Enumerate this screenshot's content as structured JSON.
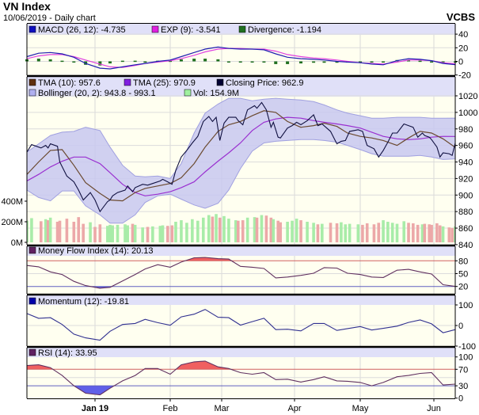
{
  "header": {
    "title": "VN Index",
    "subtitle": "10/06/2019 - Daily chart",
    "brand": "VCBS"
  },
  "colors": {
    "plot_bg": "#fffff0",
    "legend_bg": "#e0e0f8",
    "macd": "#2020b0",
    "exp": "#e040e0",
    "divergence": "#207020",
    "tma10": "#6b4a30",
    "tma25": "#9a30d0",
    "close": "#101040",
    "bollinger_fill": "#c8c8f0",
    "bollinger_edge": "#a0a0e0",
    "vol_up": "#a8eca8",
    "vol_down": "#eca8a8",
    "osc_line": "#603060",
    "momentum": "#303090",
    "overbought": "#f06060",
    "oversold": "#6060e8",
    "ob_line": "#d06060",
    "os_line": "#6060c0"
  },
  "legends": {
    "macd": {
      "label": "MACD (26, 12): -4.735",
      "swatch": "#1010c0"
    },
    "exp": {
      "label": "EXP (9): -3.541",
      "swatch": "#e020e0"
    },
    "divergence": {
      "label": "Divergence: -1.194",
      "swatch": "#207020"
    },
    "tma10": {
      "label": "TMA (10): 957.6",
      "swatch": "#603010"
    },
    "tma25": {
      "label": "TMA (25): 970.9",
      "swatch": "#8020e0"
    },
    "close": {
      "label": "Closing Price: 962.9",
      "swatch": "#000033"
    },
    "bollinger": {
      "label": "Bollinger (20, 2): 943.8 - 993.1",
      "swatch": "#b0b0f0"
    },
    "vol": {
      "label": "Vol: 154.9M",
      "swatch": "#a0f0a0"
    },
    "mfi": {
      "label": "Money Flow Index (14): 20.13",
      "swatch": "#602060"
    },
    "momentum": {
      "label": "Momentum (12): -19.81",
      "swatch": "#0000aa"
    },
    "rsi": {
      "label": "RSI (14): 33.95",
      "swatch": "#602060"
    }
  },
  "chart_data": {
    "type": "line",
    "x_ticks": [
      {
        "date": "2019-01-02",
        "label": "Jan 19",
        "bold": true
      },
      {
        "date": "2019-02-01",
        "label": "Feb"
      },
      {
        "date": "2019-03-01",
        "label": "Mar"
      },
      {
        "date": "2019-04-01",
        "label": "Apr"
      },
      {
        "date": "2019-05-02",
        "label": "May"
      },
      {
        "date": "2019-06-03",
        "label": "Jun"
      }
    ],
    "x_range": [
      "2018-12-04",
      "2019-06-10"
    ],
    "grid": true,
    "axes": {
      "macd": {
        "ticks": [
          "40",
          "20",
          "0",
          "-20"
        ],
        "values": [
          40,
          20,
          0,
          -20
        ],
        "ylim": [
          -20,
          40
        ]
      },
      "price": {
        "ticks": [
          "1020",
          "1000",
          "980",
          "960",
          "940",
          "920",
          "900",
          "880",
          "860",
          "840"
        ],
        "values": [
          1020,
          1000,
          980,
          960,
          940,
          920,
          900,
          880,
          860,
          840
        ],
        "ylim": [
          840,
          1020
        ]
      },
      "volume": {
        "ticks": [
          "400M",
          "200M",
          "0M"
        ],
        "values": [
          400,
          200,
          0
        ],
        "unit": "M"
      },
      "mfi": {
        "ticks": [
          "80",
          "50",
          "20"
        ],
        "values": [
          80,
          50,
          20
        ],
        "ylim": [
          0,
          100
        ]
      },
      "momentum": {
        "ticks": [
          "100",
          "0",
          "-100"
        ],
        "values": [
          100,
          0,
          -100
        ]
      },
      "rsi": {
        "ticks": [
          "100",
          "70",
          "30",
          "0"
        ],
        "values": [
          100,
          70,
          30,
          0
        ],
        "ylim": [
          0,
          100
        ]
      }
    },
    "close_volume": [
      [
        "2018-12-04",
        952,
        210
      ],
      [
        "2018-12-06",
        961,
        235
      ],
      [
        "2018-12-10",
        957,
        205
      ],
      [
        "2018-12-12",
        960,
        225
      ],
      [
        "2018-12-13",
        957,
        215
      ],
      [
        "2018-12-14",
        962,
        240
      ],
      [
        "2018-12-17",
        959,
        200
      ],
      [
        "2018-12-18",
        940,
        210
      ],
      [
        "2018-12-21",
        923,
        230
      ],
      [
        "2018-12-24",
        916,
        200
      ],
      [
        "2018-12-26",
        906,
        245
      ],
      [
        "2018-12-28",
        894,
        180
      ],
      [
        "2018-12-31",
        903,
        195
      ],
      [
        "2019-01-02",
        894,
        150
      ],
      [
        "2019-01-04",
        880,
        175
      ],
      [
        "2019-01-07",
        892,
        160
      ],
      [
        "2019-01-08",
        894,
        170
      ],
      [
        "2019-01-09",
        899,
        165
      ],
      [
        "2019-01-11",
        903,
        170
      ],
      [
        "2019-01-14",
        906,
        175
      ],
      [
        "2019-01-15",
        911,
        165
      ],
      [
        "2019-01-17",
        904,
        180
      ],
      [
        "2019-01-18",
        909,
        170
      ],
      [
        "2019-01-21",
        913,
        145
      ],
      [
        "2019-01-23",
        912,
        150
      ],
      [
        "2019-01-25",
        914,
        155
      ],
      [
        "2019-01-28",
        917,
        160
      ],
      [
        "2019-01-29",
        919,
        165
      ],
      [
        "2019-01-31",
        916,
        160
      ],
      [
        "2019-02-02",
        913,
        165
      ],
      [
        "2019-02-04",
        930,
        200
      ],
      [
        "2019-02-07",
        946,
        215
      ],
      [
        "2019-02-10",
        954,
        190
      ],
      [
        "2019-02-13",
        963,
        225
      ],
      [
        "2019-02-16",
        971,
        210
      ],
      [
        "2019-02-19",
        989,
        240
      ],
      [
        "2019-02-22",
        995,
        265
      ],
      [
        "2019-02-24",
        989,
        250
      ],
      [
        "2019-02-26",
        994,
        275
      ],
      [
        "2019-02-28",
        966,
        240
      ],
      [
        "2019-03-02",
        987,
        255
      ],
      [
        "2019-03-04",
        994,
        230
      ],
      [
        "2019-03-07",
        994,
        215
      ],
      [
        "2019-03-08",
        990,
        210
      ],
      [
        "2019-03-10",
        985,
        215
      ],
      [
        "2019-03-12",
        1003,
        240
      ],
      [
        "2019-03-15",
        1008,
        245
      ],
      [
        "2019-03-16",
        1005,
        240
      ],
      [
        "2019-03-18",
        1012,
        265
      ],
      [
        "2019-03-20",
        1003,
        260
      ],
      [
        "2019-03-22",
        982,
        240
      ],
      [
        "2019-03-23",
        988,
        225
      ],
      [
        "2019-03-25",
        970,
        210
      ],
      [
        "2019-03-26",
        969,
        195
      ],
      [
        "2019-03-29",
        981,
        200
      ],
      [
        "2019-03-31",
        984,
        210
      ],
      [
        "2019-04-02",
        988,
        230
      ],
      [
        "2019-04-04",
        985,
        215
      ],
      [
        "2019-04-07",
        990,
        200
      ],
      [
        "2019-04-10",
        997,
        190
      ],
      [
        "2019-04-12",
        984,
        175
      ],
      [
        "2019-04-14",
        986,
        180
      ],
      [
        "2019-04-18",
        977,
        190
      ],
      [
        "2019-04-21",
        962,
        185
      ],
      [
        "2019-04-23",
        965,
        195
      ],
      [
        "2019-04-25",
        966,
        175
      ],
      [
        "2019-04-27",
        977,
        180
      ],
      [
        "2019-05-01",
        979,
        175
      ],
      [
        "2019-05-03",
        977,
        170
      ],
      [
        "2019-05-05",
        960,
        185
      ],
      [
        "2019-05-08",
        956,
        175
      ],
      [
        "2019-05-10",
        946,
        190
      ],
      [
        "2019-05-12",
        954,
        215
      ],
      [
        "2019-05-14",
        964,
        200
      ],
      [
        "2019-05-16",
        975,
        190
      ],
      [
        "2019-05-18",
        975,
        180
      ],
      [
        "2019-05-21",
        986,
        205
      ],
      [
        "2019-05-23",
        984,
        190
      ],
      [
        "2019-05-25",
        982,
        185
      ],
      [
        "2019-05-27",
        970,
        170
      ],
      [
        "2019-05-29",
        975,
        175
      ],
      [
        "2019-05-30",
        972,
        180
      ],
      [
        "2019-06-01",
        970,
        175
      ],
      [
        "2019-06-02",
        967,
        170
      ],
      [
        "2019-06-04",
        958,
        185
      ],
      [
        "2019-06-05",
        946,
        165
      ],
      [
        "2019-06-06",
        951,
        155
      ],
      [
        "2019-06-08",
        950,
        145
      ],
      [
        "2019-06-09",
        948,
        140
      ],
      [
        "2019-06-10",
        962.9,
        154.9
      ]
    ],
    "sample_dates": [
      "2018-12-04",
      "2018-12-09",
      "2018-12-14",
      "2018-12-19",
      "2018-12-24",
      "2018-12-29",
      "2019-01-04",
      "2019-01-08",
      "2019-01-13",
      "2019-01-18",
      "2019-01-22",
      "2019-01-27",
      "2019-02-01",
      "2019-02-07",
      "2019-02-14",
      "2019-02-20",
      "2019-02-27",
      "2019-03-04",
      "2019-03-09",
      "2019-03-14",
      "2019-03-19",
      "2019-03-24",
      "2019-03-29",
      "2019-04-04",
      "2019-04-10",
      "2019-04-15",
      "2019-04-21",
      "2019-04-26",
      "2019-05-02",
      "2019-05-07",
      "2019-05-12",
      "2019-05-18",
      "2019-05-23",
      "2019-05-28",
      "2019-06-02",
      "2019-06-06",
      "2019-06-10"
    ],
    "tma10": [
      925,
      940,
      954,
      955,
      936,
      915,
      902,
      894,
      893,
      903,
      908,
      911,
      914,
      921,
      938,
      958,
      977,
      985,
      989,
      996,
      1002,
      1000,
      989,
      982,
      984,
      987,
      983,
      975,
      971,
      969,
      966,
      960,
      969,
      977,
      975,
      968,
      957.6
    ],
    "tma25": [
      917,
      925,
      934,
      941,
      946,
      946,
      938,
      927,
      913,
      903,
      899,
      901,
      904,
      909,
      916,
      928,
      941,
      951,
      963,
      978,
      988,
      992,
      994,
      993,
      990,
      988,
      986,
      984,
      981,
      976,
      971,
      968,
      967,
      968,
      970,
      971,
      970.9
    ],
    "bollinger_upper": [
      952,
      962,
      972,
      976,
      977,
      982,
      978,
      958,
      936,
      923,
      922,
      923,
      920,
      938,
      975,
      999,
      1010,
      1017,
      1017,
      1014,
      1016,
      1017,
      1016,
      1015,
      1013,
      1009,
      1003,
      999,
      996,
      993,
      993,
      994,
      994,
      994,
      993,
      993,
      993.1
    ],
    "bollinger_lower": [
      906,
      897,
      893,
      905,
      905,
      887,
      876,
      866,
      866,
      876,
      891,
      899,
      901,
      895,
      888,
      884,
      890,
      906,
      932,
      953,
      963,
      965,
      966,
      967,
      967,
      966,
      964,
      960,
      955,
      950,
      947,
      947,
      947,
      948,
      946,
      943,
      943.8
    ],
    "macd": [
      7,
      12,
      13,
      11,
      6,
      -3,
      -10,
      -11,
      -8,
      -5,
      -3,
      0,
      2,
      7,
      13,
      18,
      21,
      19,
      18,
      18,
      17,
      11,
      6,
      4,
      3,
      2,
      0,
      -1,
      -2,
      -4,
      -5,
      1,
      4,
      3,
      1,
      -3,
      -4.735
    ],
    "exp": [
      4,
      8,
      10,
      10,
      7,
      2,
      -4,
      -8,
      -9,
      -6,
      -3,
      -1,
      1,
      4,
      9,
      14,
      18,
      19,
      19,
      18,
      18,
      15,
      10,
      7,
      5,
      4,
      2,
      0,
      -2,
      -3,
      -4,
      -1,
      2,
      2,
      1,
      -2,
      -3.541
    ],
    "divergence": [
      3,
      4,
      3,
      1,
      -1,
      -5,
      -6,
      -3,
      1,
      1,
      0,
      1,
      1,
      3,
      4,
      4,
      3,
      0,
      -1,
      0,
      -1,
      -4,
      -4,
      -3,
      -2,
      -2,
      -2,
      -1,
      0,
      -1,
      -1,
      2,
      2,
      1,
      0,
      -1,
      -1.194
    ],
    "mfi": [
      69,
      66,
      54,
      48,
      32,
      22,
      16,
      18,
      33,
      48,
      61,
      71,
      65,
      77,
      87,
      88,
      85,
      84,
      67,
      65,
      62,
      40,
      42,
      46,
      51,
      64,
      63,
      51,
      48,
      42,
      41,
      58,
      60,
      54,
      49,
      24,
      20.13
    ],
    "mfi_levels": [
      80,
      20
    ],
    "momentum": [
      58,
      35,
      38,
      5,
      -42,
      -60,
      -71,
      -28,
      5,
      10,
      30,
      14,
      1,
      42,
      55,
      78,
      40,
      38,
      2,
      19,
      35,
      -20,
      -18,
      -26,
      10,
      10,
      -24,
      -15,
      -5,
      -22,
      -14,
      -3,
      15,
      27,
      8,
      -35,
      -19.81
    ],
    "rsi": [
      79,
      81,
      74,
      55,
      30,
      12,
      8,
      24,
      42,
      55,
      72,
      72,
      58,
      81,
      88,
      90,
      76,
      72,
      62,
      58,
      62,
      45,
      46,
      39,
      45,
      52,
      42,
      41,
      38,
      30,
      38,
      52,
      55,
      60,
      62,
      32,
      33.95
    ],
    "rsi_levels": [
      70,
      30
    ]
  }
}
